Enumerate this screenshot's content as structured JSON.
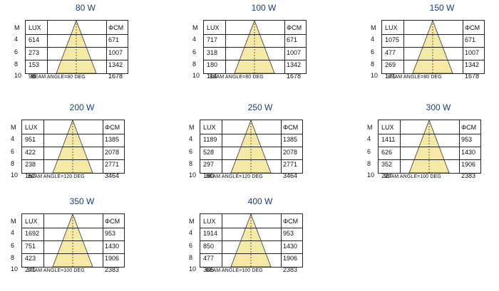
{
  "panels": [
    {
      "power": "80 W",
      "m_header": "M",
      "lux_header": "LUX",
      "fcm_header": "ΦCM",
      "rows": [
        {
          "m": "4",
          "lux": "614",
          "fcm": "671"
        },
        {
          "m": "6",
          "lux": "273",
          "fcm": "1007"
        },
        {
          "m": "8",
          "lux": "153",
          "fcm": "1342"
        },
        {
          "m": "10",
          "lux": "98",
          "fcm": "1678"
        }
      ],
      "beam": "BEAM ANGLE=80 DEG"
    },
    {
      "power": "100 W",
      "m_header": "M",
      "lux_header": "LUX",
      "fcm_header": "ΦCM",
      "rows": [
        {
          "m": "4",
          "lux": "717",
          "fcm": "671"
        },
        {
          "m": "6",
          "lux": "318",
          "fcm": "1007"
        },
        {
          "m": "8",
          "lux": "180",
          "fcm": "1342"
        },
        {
          "m": "10",
          "lux": "114",
          "fcm": "1678"
        }
      ],
      "beam": "BEAM ANGLE=80 DEG"
    },
    {
      "power": "150 W",
      "m_header": "M",
      "lux_header": "LUX",
      "fcm_header": "ΦCM",
      "rows": [
        {
          "m": "4",
          "lux": "1075",
          "fcm": "671"
        },
        {
          "m": "6",
          "lux": "477",
          "fcm": "1007"
        },
        {
          "m": "8",
          "lux": "269",
          "fcm": "1342"
        },
        {
          "m": "10",
          "lux": "171",
          "fcm": "1678"
        }
      ],
      "beam": "BEAM ANGLE=80 DEG"
    },
    {
      "power": "200 W",
      "m_header": "M",
      "lux_header": "LUX",
      "fcm_header": "ΦCM",
      "rows": [
        {
          "m": "4",
          "lux": "951",
          "fcm": "1385"
        },
        {
          "m": "6",
          "lux": "422",
          "fcm": "2078"
        },
        {
          "m": "8",
          "lux": "238",
          "fcm": "2771"
        },
        {
          "m": "10",
          "lux": "152",
          "fcm": "3464"
        }
      ],
      "beam": "BEAM ANGLE=120 DEG"
    },
    {
      "power": "250 W",
      "m_header": "M",
      "lux_header": "LUX",
      "fcm_header": "ΦCM",
      "rows": [
        {
          "m": "4",
          "lux": "1189",
          "fcm": "1385"
        },
        {
          "m": "6",
          "lux": "528",
          "fcm": "2078"
        },
        {
          "m": "8",
          "lux": "297",
          "fcm": "2771"
        },
        {
          "m": "10",
          "lux": "190",
          "fcm": "3464"
        }
      ],
      "beam": "BEAM ANGLE=120 DEG"
    },
    {
      "power": "300 W",
      "m_header": "M",
      "lux_header": "LUX",
      "fcm_header": "ΦCM",
      "rows": [
        {
          "m": "4",
          "lux": "1411",
          "fcm": "953"
        },
        {
          "m": "6",
          "lux": "626",
          "fcm": "1430"
        },
        {
          "m": "8",
          "lux": "352",
          "fcm": "1906"
        },
        {
          "m": "10",
          "lux": "227",
          "fcm": "2383"
        }
      ],
      "beam": "BEAM ANGLE=100 DEG"
    },
    {
      "power": "350 W",
      "m_header": "M",
      "lux_header": "LUX",
      "fcm_header": "ΦCM",
      "rows": [
        {
          "m": "4",
          "lux": "1692",
          "fcm": "953"
        },
        {
          "m": "6",
          "lux": "751",
          "fcm": "1430"
        },
        {
          "m": "8",
          "lux": "423",
          "fcm": "1906"
        },
        {
          "m": "10",
          "lux": "271",
          "fcm": "2383"
        }
      ],
      "beam": "BEAM ANGLE=100 DEG"
    },
    {
      "power": "400 W",
      "m_header": "M",
      "lux_header": "LUX",
      "fcm_header": "ΦCM",
      "rows": [
        {
          "m": "4",
          "lux": "1914",
          "fcm": "953"
        },
        {
          "m": "6",
          "lux": "850",
          "fcm": "1430"
        },
        {
          "m": "8",
          "lux": "477",
          "fcm": "1906"
        },
        {
          "m": "10",
          "lux": "305",
          "fcm": "2383"
        }
      ],
      "beam": "BEAM ANGLE=100 DEG"
    }
  ],
  "colors": {
    "cone_fill": "#f6e9a6",
    "cone_stroke": "#333333",
    "title": "#1d3d6b"
  }
}
